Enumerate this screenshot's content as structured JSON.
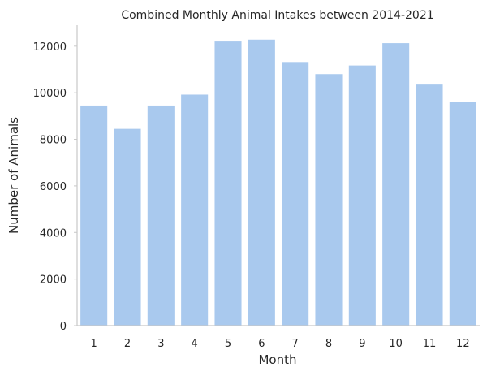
{
  "chart_data": {
    "type": "bar",
    "title": "Combined Monthly Animal Intakes between 2014-2021",
    "xlabel": "Month",
    "ylabel": "Number of Animals",
    "categories": [
      "1",
      "2",
      "3",
      "4",
      "5",
      "6",
      "7",
      "8",
      "9",
      "10",
      "11",
      "12"
    ],
    "values": [
      9450,
      8450,
      9450,
      9920,
      12200,
      12280,
      11320,
      10800,
      11170,
      12130,
      10350,
      9620
    ],
    "ylim": [
      0,
      12900
    ],
    "yticks": [
      0,
      2000,
      4000,
      6000,
      8000,
      10000,
      12000
    ],
    "bar_color": "#a9c9ee",
    "grid": false,
    "legend": false
  }
}
